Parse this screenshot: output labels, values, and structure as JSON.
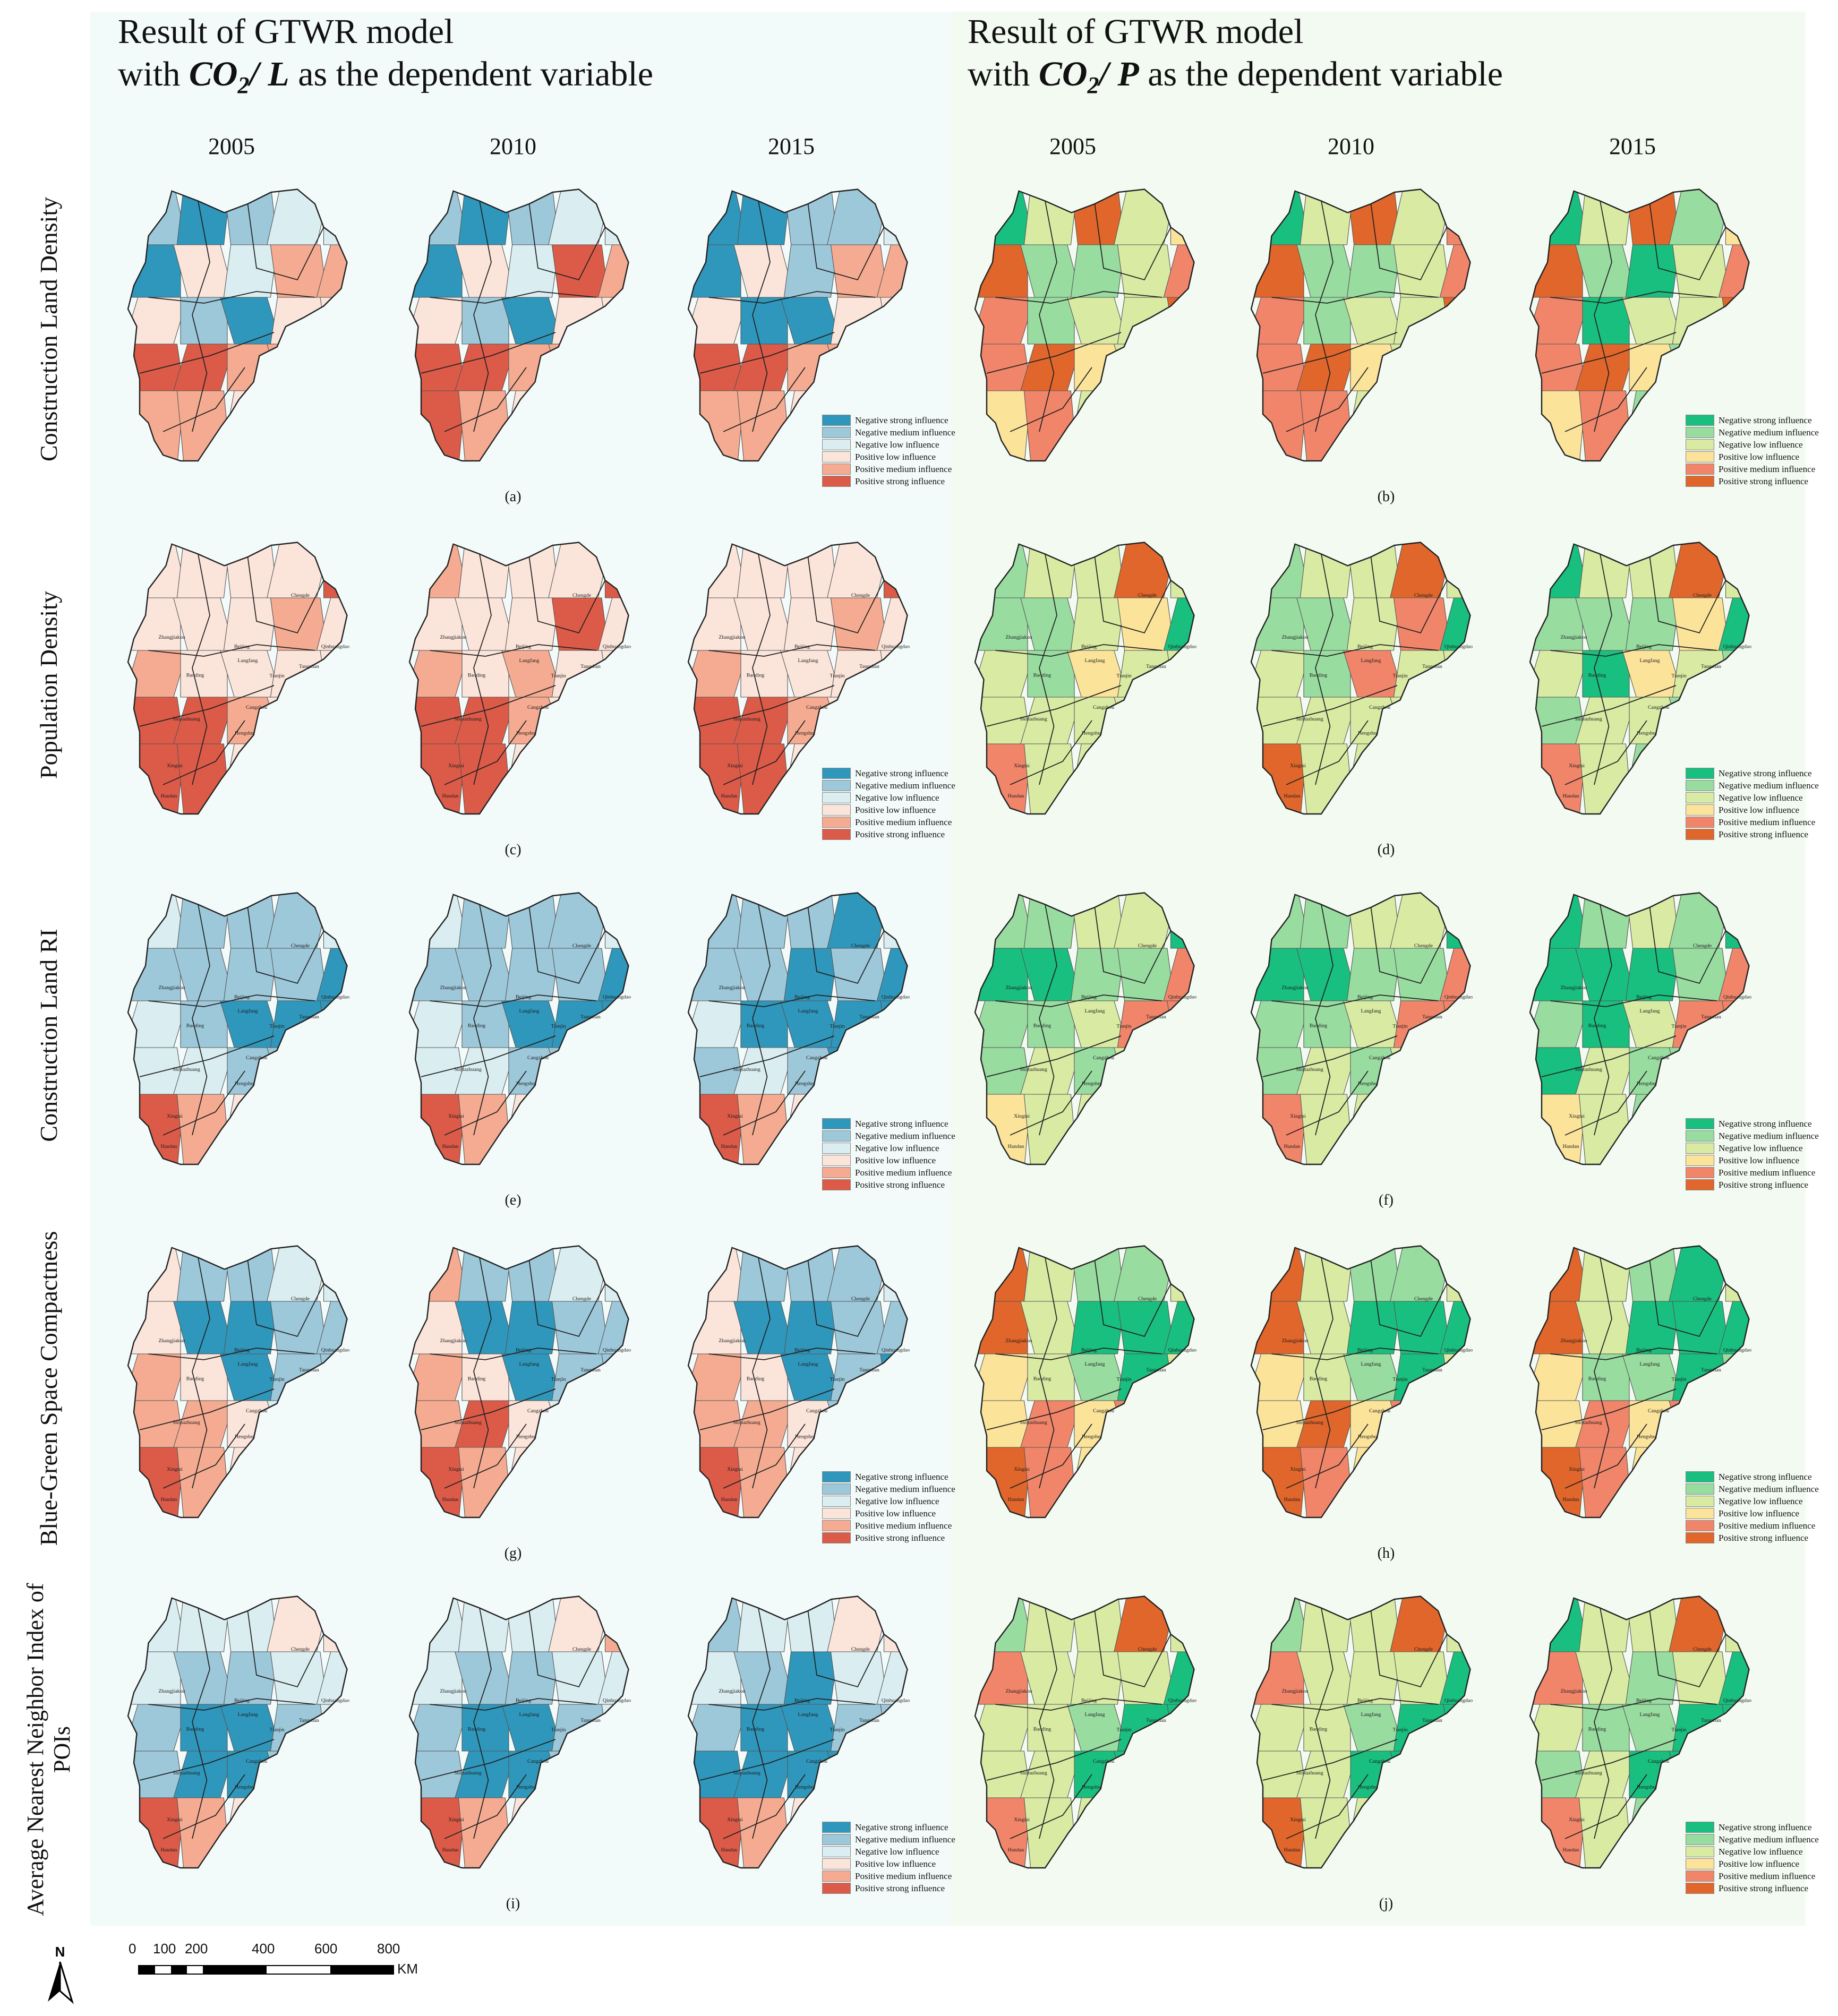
{
  "titles": {
    "left": {
      "prefix": "Result of GTWR model",
      "with": "with",
      "var_main": "CO",
      "var_sub": "2",
      "var_rest": "/ L",
      "suffix": "as the dependent variable"
    },
    "right": {
      "prefix": "Result of GTWR model",
      "with": "with",
      "var_main": "CO",
      "var_sub": "2",
      "var_rest": "/ P",
      "suffix": "as the dependent variable"
    }
  },
  "years": [
    "2005",
    "2010",
    "2015",
    "2005",
    "2010",
    "2015"
  ],
  "row_labels": [
    "Construction Land Density",
    "Population Density",
    "Construction Land RI",
    "Blue-Green Space Compactness",
    "Average Nearest Neighbor Index of POIs"
  ],
  "captions": [
    "(a)",
    "(b)",
    "(c)",
    "(d)",
    "(e)",
    "(f)",
    "(g)",
    "(h)",
    "(i)",
    "(j)"
  ],
  "legend_labels": [
    "Negative strong influence",
    "Negative medium influence",
    "Negative low influence",
    "Positive low influence",
    "Positive medium influence",
    "Positive strong influence"
  ],
  "palettes": {
    "left": [
      "#2f97bb",
      "#9dc8da",
      "#daedf1",
      "#fbe4da",
      "#f4ab91",
      "#dc5a48"
    ],
    "right": [
      "#19bf7f",
      "#98dca0",
      "#d9eaa3",
      "#fbe39a",
      "#f1856a",
      "#e0662b"
    ]
  },
  "city_names": [
    "Zhangjiakou",
    "Chengde",
    "Beijing",
    "Langfang",
    "Qinhuangdao",
    "Tangshan",
    "Tianjin",
    "Baoding",
    "Cangzhou",
    "Shijiazhuang",
    "Hengshui",
    "Xingtai",
    "Handan"
  ],
  "map_level_codes": {
    "a": [
      [
        1,
        0,
        1,
        2,
        2
      ],
      [
        0,
        3,
        2,
        4,
        4
      ],
      [
        3,
        1,
        0,
        3,
        3
      ],
      [
        5,
        5,
        4,
        4,
        3
      ],
      [
        4,
        4,
        3,
        4,
        1
      ]
    ],
    "b": [
      [
        0,
        2,
        5,
        2,
        3
      ],
      [
        5,
        1,
        1,
        2,
        4
      ],
      [
        4,
        1,
        2,
        2,
        5
      ],
      [
        4,
        5,
        3,
        2,
        2
      ],
      [
        3,
        4,
        2,
        2,
        0
      ]
    ],
    "c": [
      [
        3,
        3,
        3,
        3,
        5
      ],
      [
        3,
        3,
        3,
        4,
        3
      ],
      [
        4,
        3,
        3,
        3,
        3
      ],
      [
        5,
        5,
        4,
        3,
        3
      ],
      [
        5,
        5,
        3,
        3,
        3
      ]
    ],
    "d": [
      [
        1,
        2,
        2,
        5,
        2
      ],
      [
        1,
        1,
        2,
        3,
        0
      ],
      [
        2,
        1,
        3,
        2,
        2
      ],
      [
        2,
        2,
        2,
        2,
        2
      ],
      [
        4,
        2,
        2,
        2,
        2
      ]
    ],
    "e": [
      [
        2,
        1,
        1,
        1,
        2
      ],
      [
        1,
        1,
        1,
        1,
        0
      ],
      [
        2,
        1,
        0,
        0,
        0
      ],
      [
        2,
        2,
        1,
        1,
        2
      ],
      [
        5,
        4,
        3,
        2,
        2
      ]
    ],
    "f": [
      [
        1,
        1,
        2,
        2,
        0
      ],
      [
        0,
        0,
        1,
        1,
        4
      ],
      [
        1,
        1,
        2,
        4,
        4
      ],
      [
        1,
        2,
        1,
        2,
        2
      ],
      [
        3,
        2,
        2,
        2,
        2
      ]
    ],
    "g": [
      [
        3,
        1,
        1,
        2,
        2
      ],
      [
        3,
        0,
        0,
        1,
        1
      ],
      [
        4,
        3,
        0,
        1,
        1
      ],
      [
        4,
        4,
        3,
        2,
        2
      ],
      [
        5,
        4,
        3,
        2,
        2
      ]
    ],
    "h": [
      [
        5,
        2,
        1,
        1,
        2
      ],
      [
        5,
        2,
        0,
        0,
        0
      ],
      [
        3,
        2,
        1,
        0,
        2
      ],
      [
        3,
        4,
        3,
        4,
        2
      ],
      [
        5,
        4,
        3,
        2,
        2
      ]
    ],
    "i": [
      [
        2,
        2,
        2,
        3,
        3
      ],
      [
        2,
        1,
        1,
        2,
        2
      ],
      [
        1,
        0,
        0,
        1,
        2
      ],
      [
        1,
        0,
        0,
        1,
        2
      ],
      [
        5,
        4,
        3,
        2,
        2
      ]
    ],
    "j": [
      [
        1,
        2,
        2,
        5,
        2
      ],
      [
        4,
        2,
        2,
        2,
        0
      ],
      [
        2,
        2,
        1,
        0,
        0
      ],
      [
        2,
        2,
        0,
        0,
        1
      ],
      [
        4,
        2,
        2,
        2,
        2
      ]
    ]
  },
  "scalebar": {
    "ticks": [
      "0",
      "100",
      "200",
      "400",
      "600",
      "800"
    ],
    "unit": "KM",
    "north_label": "N"
  }
}
